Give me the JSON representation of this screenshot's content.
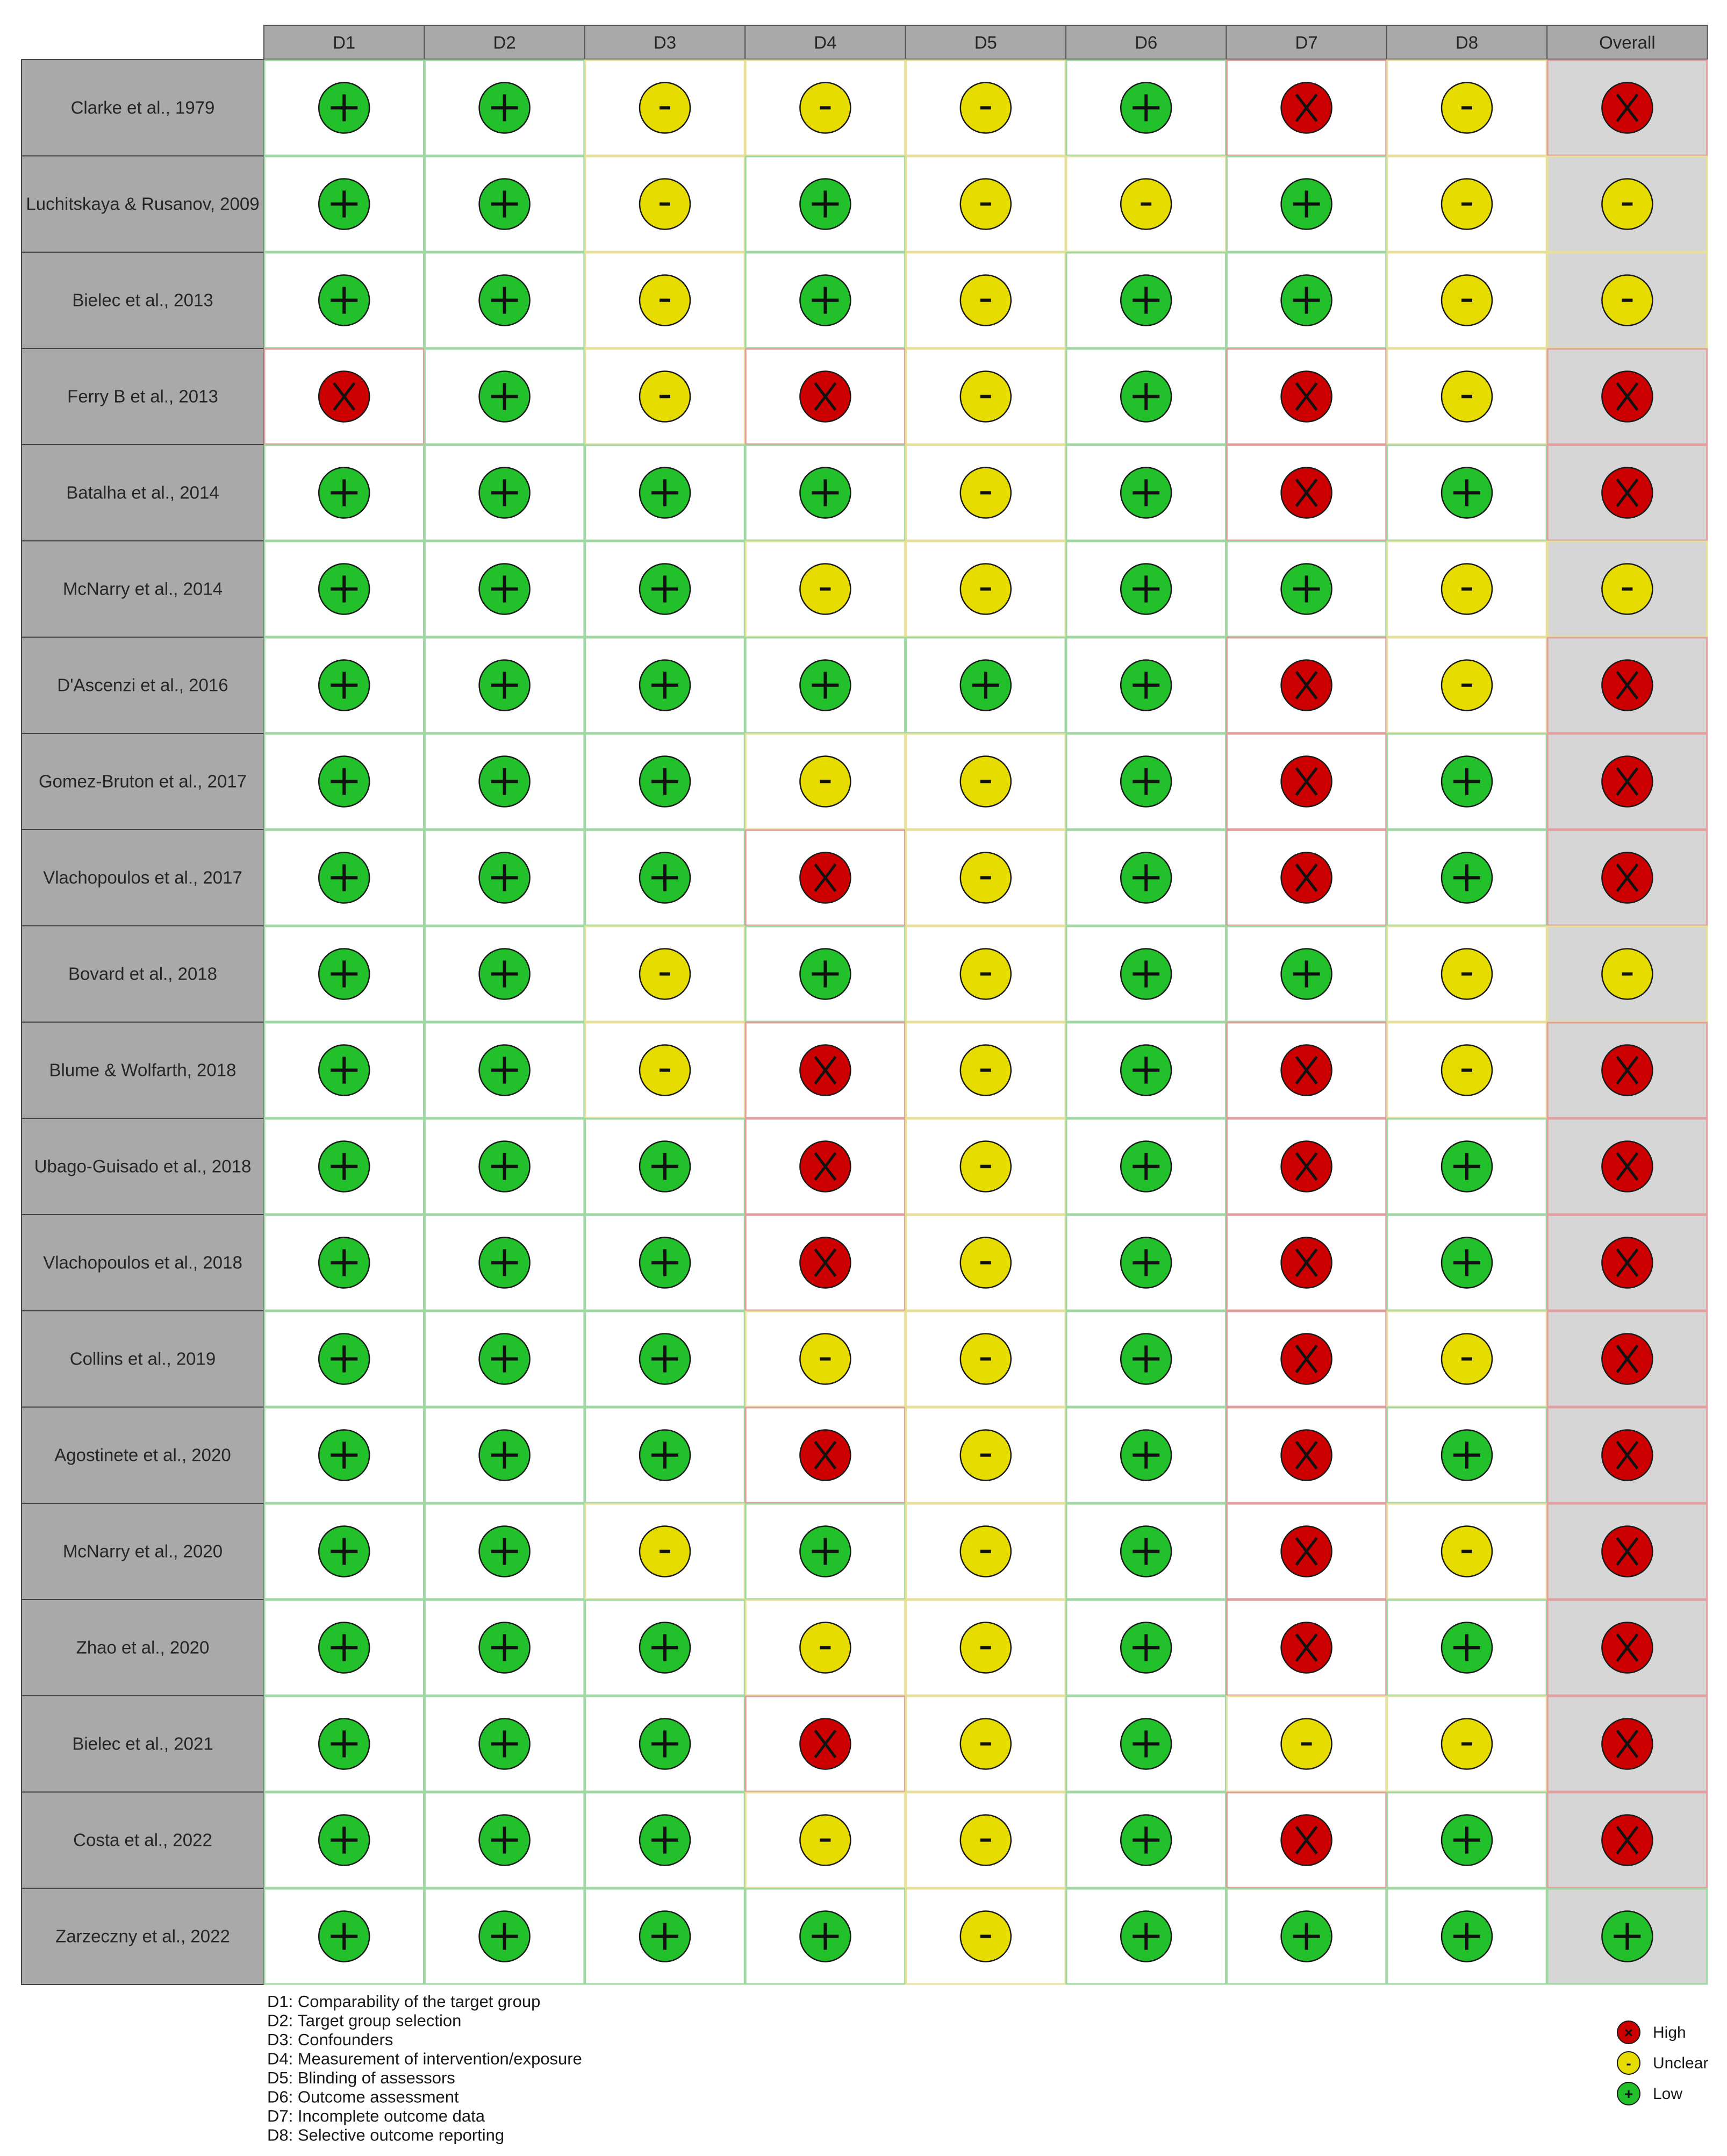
{
  "colors": {
    "high": "#cc0000",
    "unclear": "#e6dc00",
    "low": "#22c02a",
    "header_bg": "#a9a9a9",
    "study_bg": "#a9a9a9",
    "overall_bg": "#d6d6d6"
  },
  "chart_data": {
    "type": "table",
    "domains": [
      "D1",
      "D2",
      "D3",
      "D4",
      "D5",
      "D6",
      "D7",
      "D8"
    ],
    "overall_label": "Overall",
    "studies": [
      {
        "label": "Clarke et al., 1979",
        "ratings": [
          "low",
          "low",
          "unclear",
          "unclear",
          "unclear",
          "low",
          "high",
          "unclear"
        ],
        "overall": "high"
      },
      {
        "label": "Luchitskaya & Rusanov, 2009",
        "ratings": [
          "low",
          "low",
          "unclear",
          "low",
          "unclear",
          "unclear",
          "low",
          "unclear"
        ],
        "overall": "unclear"
      },
      {
        "label": "Bielec et al., 2013",
        "ratings": [
          "low",
          "low",
          "unclear",
          "low",
          "unclear",
          "low",
          "low",
          "unclear"
        ],
        "overall": "unclear"
      },
      {
        "label": "Ferry B et al., 2013",
        "ratings": [
          "high",
          "low",
          "unclear",
          "high",
          "unclear",
          "low",
          "high",
          "unclear"
        ],
        "overall": "high"
      },
      {
        "label": "Batalha et al., 2014",
        "ratings": [
          "low",
          "low",
          "low",
          "low",
          "unclear",
          "low",
          "high",
          "low"
        ],
        "overall": "high"
      },
      {
        "label": "McNarry et al., 2014",
        "ratings": [
          "low",
          "low",
          "low",
          "unclear",
          "unclear",
          "low",
          "low",
          "unclear"
        ],
        "overall": "unclear"
      },
      {
        "label": "D'Ascenzi et al., 2016",
        "ratings": [
          "low",
          "low",
          "low",
          "low",
          "low",
          "low",
          "high",
          "unclear"
        ],
        "overall": "high"
      },
      {
        "label": "Gomez-Bruton et al., 2017",
        "ratings": [
          "low",
          "low",
          "low",
          "unclear",
          "unclear",
          "low",
          "high",
          "low"
        ],
        "overall": "high"
      },
      {
        "label": "Vlachopoulos et al., 2017",
        "ratings": [
          "low",
          "low",
          "low",
          "high",
          "unclear",
          "low",
          "high",
          "low"
        ],
        "overall": "high"
      },
      {
        "label": "Bovard et al., 2018",
        "ratings": [
          "low",
          "low",
          "unclear",
          "low",
          "unclear",
          "low",
          "low",
          "unclear"
        ],
        "overall": "unclear"
      },
      {
        "label": "Blume & Wolfarth, 2018",
        "ratings": [
          "low",
          "low",
          "unclear",
          "high",
          "unclear",
          "low",
          "high",
          "unclear"
        ],
        "overall": "high"
      },
      {
        "label": "Ubago-Guisado et al., 2018",
        "ratings": [
          "low",
          "low",
          "low",
          "high",
          "unclear",
          "low",
          "high",
          "low"
        ],
        "overall": "high"
      },
      {
        "label": "Vlachopoulos et al., 2018",
        "ratings": [
          "low",
          "low",
          "low",
          "high",
          "unclear",
          "low",
          "high",
          "low"
        ],
        "overall": "high"
      },
      {
        "label": "Collins et al., 2019",
        "ratings": [
          "low",
          "low",
          "low",
          "unclear",
          "unclear",
          "low",
          "high",
          "unclear"
        ],
        "overall": "high"
      },
      {
        "label": "Agostinete et al., 2020",
        "ratings": [
          "low",
          "low",
          "low",
          "high",
          "unclear",
          "low",
          "high",
          "low"
        ],
        "overall": "high"
      },
      {
        "label": "McNarry et al., 2020",
        "ratings": [
          "low",
          "low",
          "unclear",
          "low",
          "unclear",
          "low",
          "high",
          "unclear"
        ],
        "overall": "high"
      },
      {
        "label": "Zhao et al., 2020",
        "ratings": [
          "low",
          "low",
          "low",
          "unclear",
          "unclear",
          "low",
          "high",
          "low"
        ],
        "overall": "high"
      },
      {
        "label": "Bielec et al., 2021",
        "ratings": [
          "low",
          "low",
          "low",
          "high",
          "unclear",
          "low",
          "unclear",
          "unclear"
        ],
        "overall": "high"
      },
      {
        "label": "Costa et al., 2022",
        "ratings": [
          "low",
          "low",
          "low",
          "unclear",
          "unclear",
          "low",
          "high",
          "low"
        ],
        "overall": "high"
      },
      {
        "label": "Zarzeczny et al., 2022",
        "ratings": [
          "low",
          "low",
          "low",
          "low",
          "unclear",
          "low",
          "low",
          "low"
        ],
        "overall": "low"
      }
    ],
    "domain_notes": [
      "D1: Comparability of the target group",
      "D2: Target group selection",
      "D3: Confounders",
      "D4: Measurement of intervention/exposure",
      "D5: Blinding of assessors",
      "D6: Outcome assessment",
      "D7: Incomplete outcome data",
      "D8: Selective outcome reporting"
    ],
    "legend": [
      {
        "key": "high",
        "label": "High",
        "symbol": "X"
      },
      {
        "key": "unclear",
        "label": "Unclear",
        "symbol": "-"
      },
      {
        "key": "low",
        "label": "Low",
        "symbol": "+"
      }
    ],
    "legend_placement": "bottom-right"
  }
}
